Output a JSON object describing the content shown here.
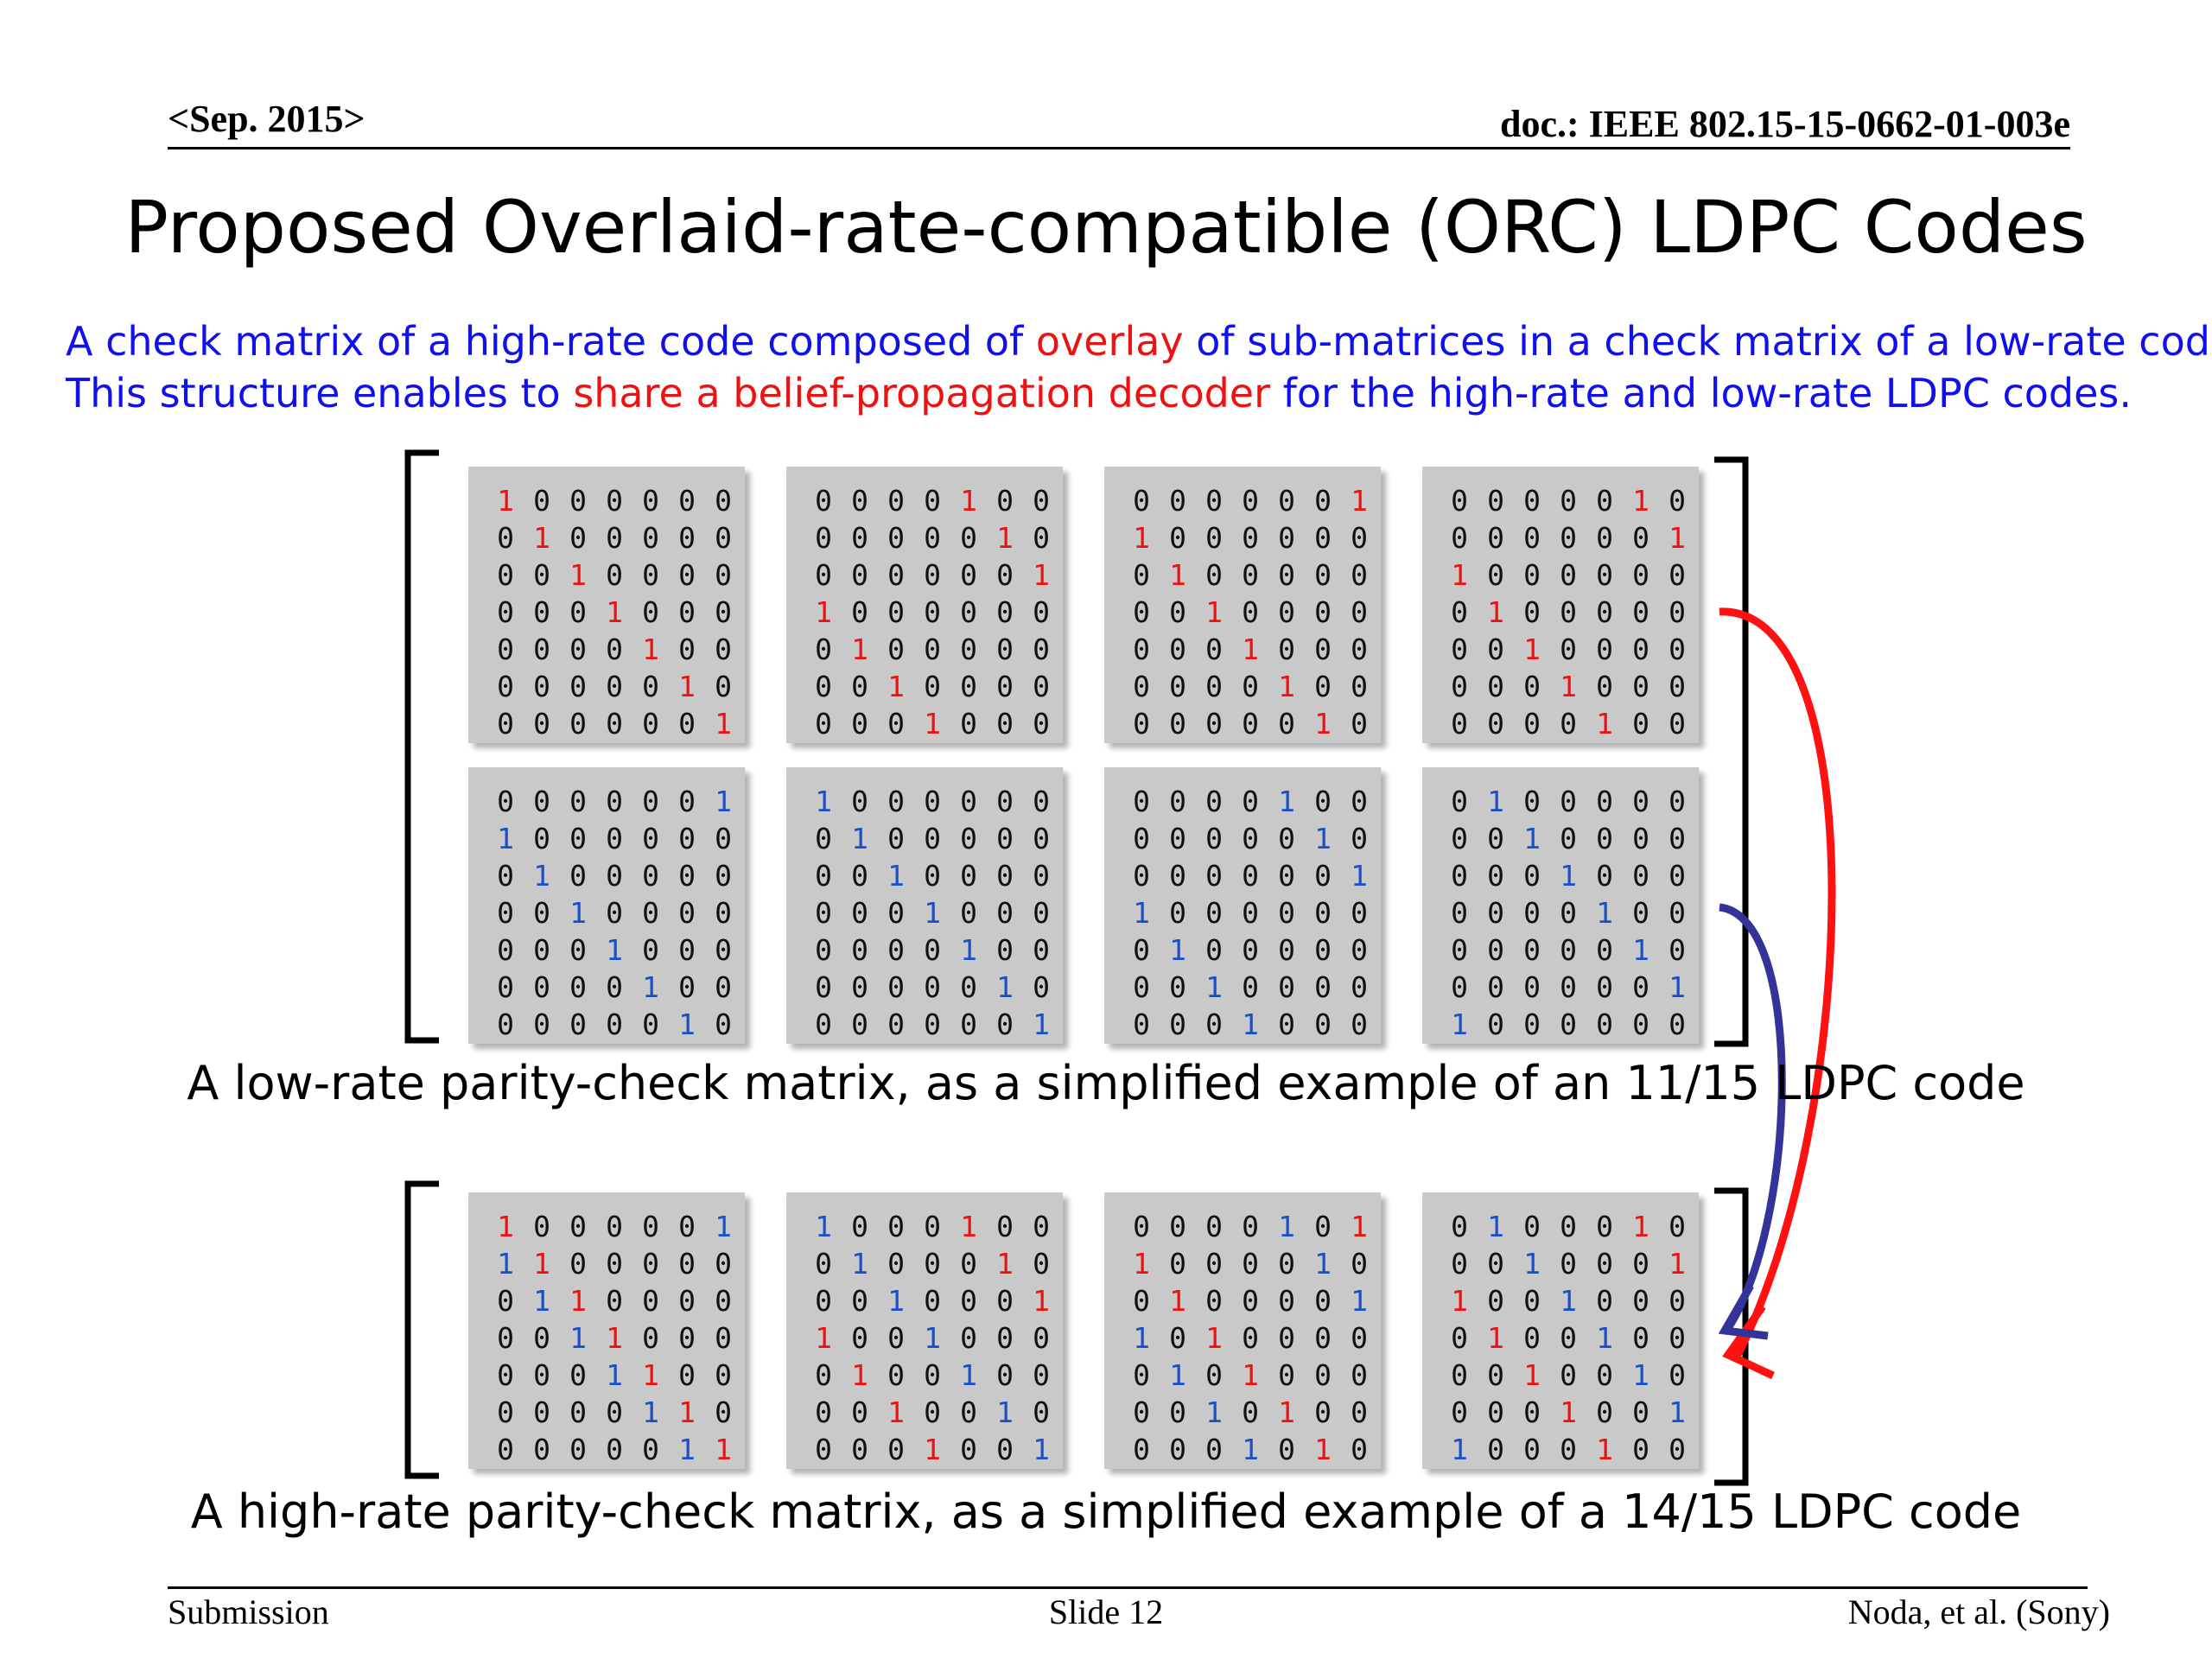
{
  "header": {
    "date": "<Sep. 2015>",
    "doc": "doc.: IEEE 802.15-15-0662-01-003e"
  },
  "title": "Proposed Overlaid-rate-compatible (ORC) LDPC Codes",
  "intro": {
    "line1": [
      {
        "text": "A check matrix of a high-rate code composed of ",
        "color": "blue"
      },
      {
        "text": "overlay",
        "color": "red"
      },
      {
        "text": " of sub-matrices in a check matrix of a low-rate code.",
        "color": "blue"
      }
    ],
    "line2": [
      {
        "text": "This structure enables to ",
        "color": "blue"
      },
      {
        "text": "share a belief-propagation decoder",
        "color": "red"
      },
      {
        "text": " for the high-rate and low-rate LDPC codes.",
        "color": "blue"
      }
    ]
  },
  "colors": {
    "blue": "#1010ee",
    "red": "#ee1111",
    "one_red": "#ee1111",
    "one_blue": "#1a4fcc",
    "arrow_red": "#ff1111",
    "arrow_blue": "#333399"
  },
  "low_rate": {
    "caption": "A low-rate parity-check matrix, as a simplified example of an 11/15 LDPC code",
    "top_row_shifts": [
      0,
      4,
      6,
      5
    ],
    "bottom_row_shifts": [
      6,
      0,
      4,
      1
    ]
  },
  "high_rate": {
    "caption": "A high-rate parity-check matrix, as a simplified example of a 14/15 LDPC code"
  },
  "footer": {
    "left": "Submission",
    "center": "Slide 12",
    "right": "Noda, et al. (Sony)"
  }
}
